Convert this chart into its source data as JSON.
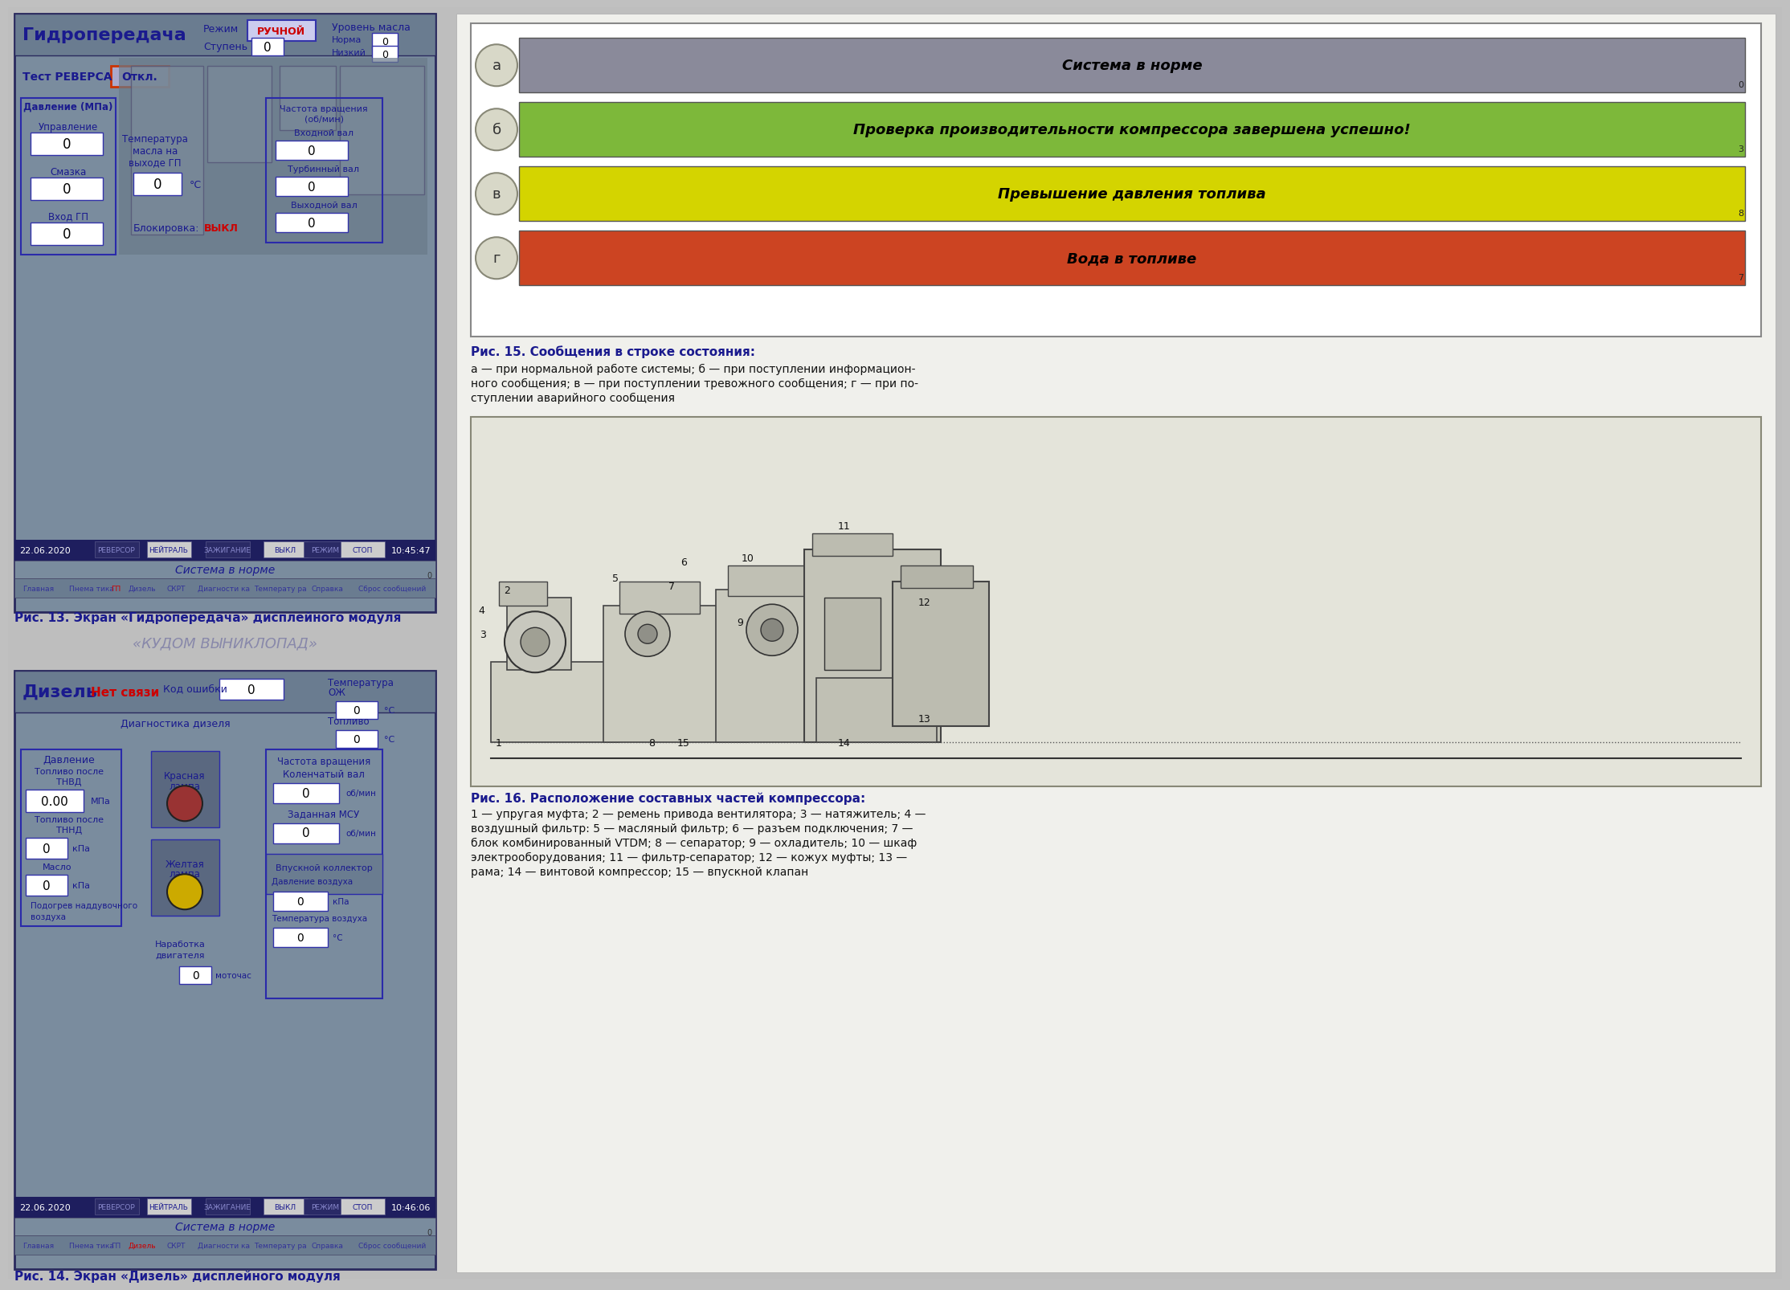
{
  "fig_title_left": "Гидропередача",
  "fig_title_left2": "Дизель",
  "status_rows": [
    {
      "label": "а",
      "text": "Система в норме",
      "num": "0",
      "bg": "#8a8a9a",
      "text_color": "#000000"
    },
    {
      "label": "б",
      "text": "Проверка производительности компрессора завершена успешно!",
      "num": "3",
      "bg": "#7db83a",
      "text_color": "#000000"
    },
    {
      "label": "в",
      "text": "Превышение давления топлива",
      "num": "8",
      "bg": "#d4d400",
      "text_color": "#000000"
    },
    {
      "label": "г",
      "text": "Вода в топливе",
      "num": "7",
      "bg": "#cc4422",
      "text_color": "#000000"
    }
  ],
  "fig15_title": "Рис. 15. Сообщения в строке состояния:",
  "fig15_body1": "а — при нормальной работе системы; б — при поступлении информацион-",
  "fig15_body2": "ного сообщения; в — при поступлении тревожного сообщения; г — при по-",
  "fig15_body3": "ступлении аварийного сообщения",
  "fig13_caption": "Рис. 13. Экран «Гидропередача» дисплейного модуля",
  "fig14_caption": "Рис. 14. Экран «Дизель» дисплейного модуля",
  "fig16_caption": "Рис. 16. Расположение составных частей компрессора:",
  "fig16_body1": "1 — упругая муфта; 2 — ремень привода вентилятора; 3 — натяжитель; 4 —",
  "fig16_body2": "воздушный фильтр: 5 — масляный фильтр; 6 — разъем подключения; 7 —",
  "fig16_body3": "блок комбинированный VTDM; 8 — сепаратор; 9 — охладитель; 10 — шкаф",
  "fig16_body4": "электрооборудования; 11 — фильтр-сепаратор; 12 — кожух муфты; 13 —",
  "fig16_body5": "рама; 14 — винтовой компрессор; 15 — впускной клапан"
}
